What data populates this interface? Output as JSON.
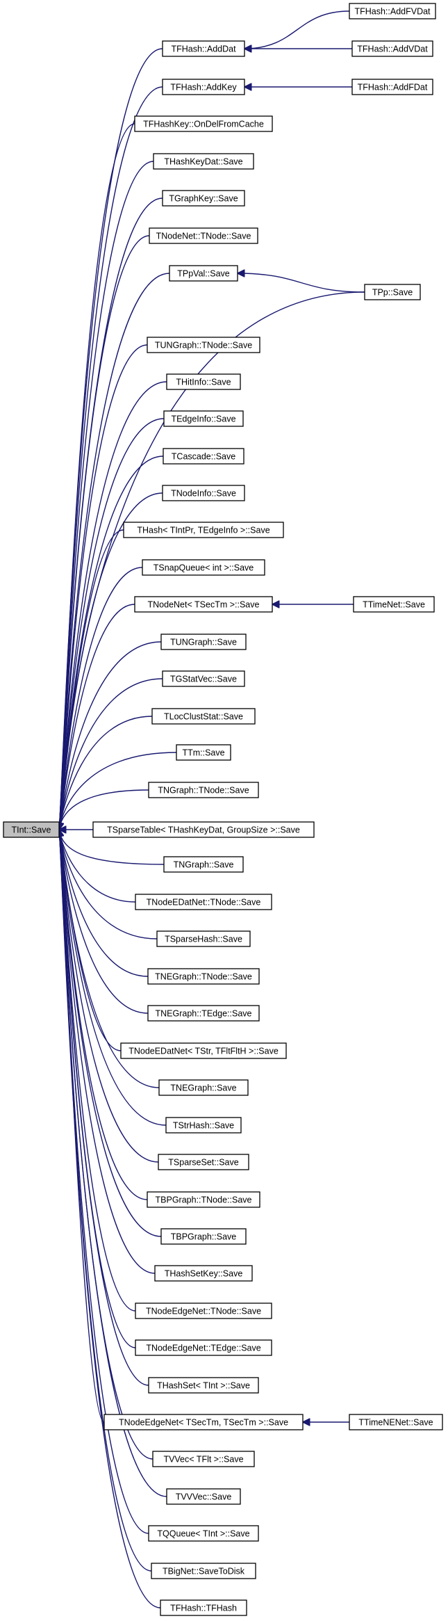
{
  "diagram": {
    "type": "caller-graph",
    "colors": {
      "edge": "#191970",
      "root_fill": "#bfbfbf",
      "node_fill": "#ffffff",
      "node_border": "#000000"
    },
    "root": {
      "id": "root",
      "label": "TInt::Save"
    },
    "nodes": [
      {
        "id": "n_addfvdat",
        "label": "TFHash::AddFVDat"
      },
      {
        "id": "n_adddat",
        "label": "TFHash::AddDat"
      },
      {
        "id": "n_addvdat",
        "label": "TFHash::AddVDat"
      },
      {
        "id": "n_addkey",
        "label": "TFHash::AddKey"
      },
      {
        "id": "n_addfdat",
        "label": "TFHash::AddFDat"
      },
      {
        "id": "n_ondel",
        "label": "TFHashKey::OnDelFromCache"
      },
      {
        "id": "n_hashkeydat",
        "label": "THashKeyDat::Save"
      },
      {
        "id": "n_graphkey",
        "label": "TGraphKey::Save"
      },
      {
        "id": "n_nodenet_tnode",
        "label": "TNodeNet::TNode::Save"
      },
      {
        "id": "n_ppval",
        "label": "TPpVal::Save"
      },
      {
        "id": "n_pp",
        "label": "TPp::Save"
      },
      {
        "id": "n_ungraph_tnode",
        "label": "TUNGraph::TNode::Save"
      },
      {
        "id": "n_hitinfo",
        "label": "THitInfo::Save"
      },
      {
        "id": "n_edgeinfo",
        "label": "TEdgeInfo::Save"
      },
      {
        "id": "n_cascade",
        "label": "TCascade::Save"
      },
      {
        "id": "n_nodeinfo",
        "label": "TNodeInfo::Save"
      },
      {
        "id": "n_thash_intpr",
        "label": "THash< TIntPr, TEdgeInfo >::Save"
      },
      {
        "id": "n_snapqueue",
        "label": "TSnapQueue< int >::Save"
      },
      {
        "id": "n_nodenet_sectm",
        "label": "TNodeNet< TSecTm >::Save"
      },
      {
        "id": "n_timenet",
        "label": "TTimeNet::Save"
      },
      {
        "id": "n_ungraph",
        "label": "TUNGraph::Save"
      },
      {
        "id": "n_gstatvec",
        "label": "TGStatVec::Save"
      },
      {
        "id": "n_locclust",
        "label": "TLocClustStat::Save"
      },
      {
        "id": "n_tm",
        "label": "TTm::Save"
      },
      {
        "id": "n_ngraph_tnode",
        "label": "TNGraph::TNode::Save"
      },
      {
        "id": "n_sparsetable",
        "label": "TSparseTable< THashKeyDat, GroupSize >::Save"
      },
      {
        "id": "n_ngraph",
        "label": "TNGraph::Save"
      },
      {
        "id": "n_nodeedatnet_tnode",
        "label": "TNodeEDatNet::TNode::Save"
      },
      {
        "id": "n_sparsehash",
        "label": "TSparseHash::Save"
      },
      {
        "id": "n_negraph_tnode",
        "label": "TNEGraph::TNode::Save"
      },
      {
        "id": "n_negraph_tedge",
        "label": "TNEGraph::TEdge::Save"
      },
      {
        "id": "n_nodeedatnet_str",
        "label": "TNodeEDatNet< TStr, TFltFltH >::Save"
      },
      {
        "id": "n_negraph",
        "label": "TNEGraph::Save"
      },
      {
        "id": "n_strhash",
        "label": "TStrHash::Save"
      },
      {
        "id": "n_sparseset",
        "label": "TSparseSet::Save"
      },
      {
        "id": "n_bpgraph_tnode",
        "label": "TBPGraph::TNode::Save"
      },
      {
        "id": "n_bpgraph",
        "label": "TBPGraph::Save"
      },
      {
        "id": "n_hashsetkey",
        "label": "THashSetKey::Save"
      },
      {
        "id": "n_nodeedgenet_tnode",
        "label": "TNodeEdgeNet::TNode::Save"
      },
      {
        "id": "n_nodeedgenet_tedge",
        "label": "TNodeEdgeNet::TEdge::Save"
      },
      {
        "id": "n_hashset_tint",
        "label": "THashSet< TInt >::Save"
      },
      {
        "id": "n_nodeedgenet_sectm",
        "label": "TNodeEdgeNet< TSecTm, TSecTm >::Save"
      },
      {
        "id": "n_timenenet",
        "label": "TTimeNENet::Save"
      },
      {
        "id": "n_vvec_tflt",
        "label": "TVVec< TFlt >::Save"
      },
      {
        "id": "n_vvvec",
        "label": "TVVVec::Save"
      },
      {
        "id": "n_qqueue",
        "label": "TQQueue< TInt >::Save"
      },
      {
        "id": "n_bignet",
        "label": "TBigNet::SaveToDisk"
      },
      {
        "id": "n_fhash",
        "label": "TFHash::TFHash"
      }
    ],
    "edges": [
      [
        "n_adddat",
        "root"
      ],
      [
        "n_addkey",
        "root"
      ],
      [
        "n_ondel",
        "root"
      ],
      [
        "n_hashkeydat",
        "root"
      ],
      [
        "n_graphkey",
        "root"
      ],
      [
        "n_nodenet_tnode",
        "root"
      ],
      [
        "n_ppval",
        "root"
      ],
      [
        "n_pp",
        "root"
      ],
      [
        "n_ungraph_tnode",
        "root"
      ],
      [
        "n_hitinfo",
        "root"
      ],
      [
        "n_edgeinfo",
        "root"
      ],
      [
        "n_cascade",
        "root"
      ],
      [
        "n_nodeinfo",
        "root"
      ],
      [
        "n_thash_intpr",
        "root"
      ],
      [
        "n_snapqueue",
        "root"
      ],
      [
        "n_nodenet_sectm",
        "root"
      ],
      [
        "n_ungraph",
        "root"
      ],
      [
        "n_gstatvec",
        "root"
      ],
      [
        "n_locclust",
        "root"
      ],
      [
        "n_tm",
        "root"
      ],
      [
        "n_ngraph_tnode",
        "root"
      ],
      [
        "n_sparsetable",
        "root"
      ],
      [
        "n_ngraph",
        "root"
      ],
      [
        "n_nodeedatnet_tnode",
        "root"
      ],
      [
        "n_sparsehash",
        "root"
      ],
      [
        "n_negraph_tnode",
        "root"
      ],
      [
        "n_negraph_tedge",
        "root"
      ],
      [
        "n_nodeedatnet_str",
        "root"
      ],
      [
        "n_negraph",
        "root"
      ],
      [
        "n_strhash",
        "root"
      ],
      [
        "n_sparseset",
        "root"
      ],
      [
        "n_bpgraph_tnode",
        "root"
      ],
      [
        "n_bpgraph",
        "root"
      ],
      [
        "n_hashsetkey",
        "root"
      ],
      [
        "n_nodeedgenet_tnode",
        "root"
      ],
      [
        "n_nodeedgenet_tedge",
        "root"
      ],
      [
        "n_hashset_tint",
        "root"
      ],
      [
        "n_nodeedgenet_sectm",
        "root"
      ],
      [
        "n_vvec_tflt",
        "root"
      ],
      [
        "n_vvvec",
        "root"
      ],
      [
        "n_qqueue",
        "root"
      ],
      [
        "n_bignet",
        "root"
      ],
      [
        "n_fhash",
        "root"
      ],
      [
        "n_addfvdat",
        "n_adddat"
      ],
      [
        "n_addvdat",
        "n_adddat"
      ],
      [
        "n_addfdat",
        "n_addkey"
      ],
      [
        "n_pp",
        "n_ppval"
      ],
      [
        "n_timenet",
        "n_nodenet_sectm"
      ],
      [
        "n_timenenet",
        "n_nodeedgenet_sectm"
      ]
    ]
  }
}
